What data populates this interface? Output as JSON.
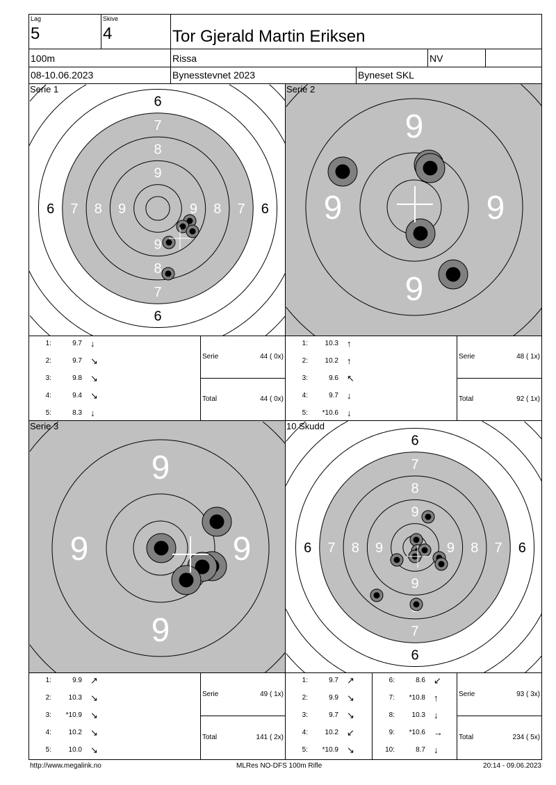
{
  "header": {
    "lag_label": "Lag",
    "lag": "5",
    "skive_label": "Skive",
    "skive": "4",
    "name": "Tor Gjerald Martin Eriksen",
    "distance": "100m",
    "club": "Rissa",
    "class": "NV",
    "class2": "",
    "date": "08-10.06.2023",
    "event": "Bynesstevnet 2023",
    "organizer": "Byneset SKL"
  },
  "colors": {
    "aiming_area": "#c0c0c0",
    "shot_outer": "#808080",
    "shot_inner": "#000000"
  },
  "panels": [
    {
      "title": "Serie 1",
      "ring_labels": [
        "6",
        "7",
        "8",
        "9"
      ]
    },
    {
      "title": "Serie 2",
      "ring_labels": [
        "9"
      ]
    },
    {
      "title": "Serie 3",
      "ring_labels": [
        "9"
      ]
    },
    {
      "title": "10 Skudd",
      "ring_labels": [
        "6",
        "7",
        "8",
        "9"
      ]
    }
  ],
  "series": [
    {
      "shots": [
        {
          "n": "1:",
          "v": "9.7",
          "arrow": "↓"
        },
        {
          "n": "2:",
          "v": "9.7",
          "arrow": "↘"
        },
        {
          "n": "3:",
          "v": "9.8",
          "arrow": "↘"
        },
        {
          "n": "4:",
          "v": "9.4",
          "arrow": "↘"
        },
        {
          "n": "5:",
          "v": "8.3",
          "arrow": "↓"
        }
      ],
      "serie_label": "Serie",
      "serie": "44 ( 0x)",
      "total_label": "Total",
      "total": "44 ( 0x)"
    },
    {
      "shots": [
        {
          "n": "1:",
          "v": "10.3",
          "arrow": "↑"
        },
        {
          "n": "2:",
          "v": "10.2",
          "arrow": "↑"
        },
        {
          "n": "3:",
          "v": "9.6",
          "arrow": "↖"
        },
        {
          "n": "4:",
          "v": "9.7",
          "arrow": "↓"
        },
        {
          "n": "5:",
          "v": "*10.6",
          "arrow": "↓"
        }
      ],
      "serie_label": "Serie",
      "serie": "48 ( 1x)",
      "total_label": "Total",
      "total": "92 ( 1x)"
    },
    {
      "shots": [
        {
          "n": "1:",
          "v": "9.9",
          "arrow": "↗"
        },
        {
          "n": "2:",
          "v": "10.3",
          "arrow": "↘"
        },
        {
          "n": "3:",
          "v": "*10.9",
          "arrow": "↘"
        },
        {
          "n": "4:",
          "v": "10.2",
          "arrow": "↘"
        },
        {
          "n": "5:",
          "v": "10.0",
          "arrow": "↘"
        }
      ],
      "serie_label": "Serie",
      "serie": "49 ( 1x)",
      "total_label": "Total",
      "total": "141 ( 2x)"
    },
    {
      "shots": [
        {
          "n": "1:",
          "v": "9.7",
          "arrow": "↗"
        },
        {
          "n": "2:",
          "v": "9.9",
          "arrow": "↘"
        },
        {
          "n": "3:",
          "v": "9.7",
          "arrow": "↘"
        },
        {
          "n": "4:",
          "v": "10.2",
          "arrow": "↙"
        },
        {
          "n": "5:",
          "v": "*10.9",
          "arrow": "↘"
        },
        {
          "n": "6:",
          "v": "8.6",
          "arrow": "↙"
        },
        {
          "n": "7:",
          "v": "*10.8",
          "arrow": "↑"
        },
        {
          "n": "8:",
          "v": "10.3",
          "arrow": "↓"
        },
        {
          "n": "9:",
          "v": "*10.6",
          "arrow": "→"
        },
        {
          "n": "10:",
          "v": "8.7",
          "arrow": "↓"
        }
      ],
      "serie_label": "Serie",
      "serie": "93 ( 3x)",
      "total_label": "Total",
      "total": "234 ( 5x)"
    }
  ],
  "footer": {
    "url": "http://www.megalink.no",
    "software": "MLRes NO-DFS 100m Rifle",
    "timestamp": "20:14 - 09.06.2023"
  }
}
